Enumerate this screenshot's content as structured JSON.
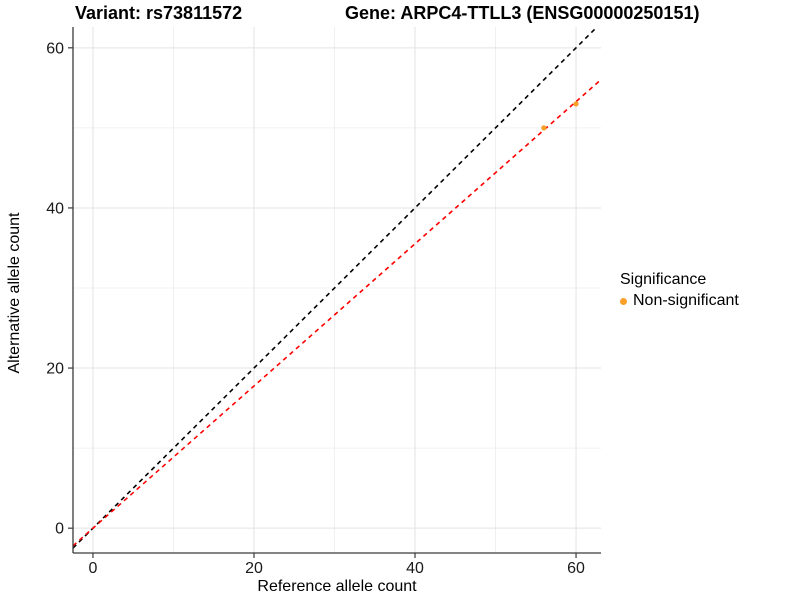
{
  "title": {
    "variant": "Variant: rs73811572",
    "gene": "Gene: ARPC4-TTLL3 (ENSG00000250151)"
  },
  "axes": {
    "x_label": "Reference allele count",
    "y_label": "Alternative allele count"
  },
  "legend": {
    "title": "Significance",
    "items": [
      {
        "label": "Non-significant",
        "color": "#F8A028"
      }
    ]
  },
  "chart_data": {
    "type": "scatter",
    "title": "Variant: rs73811572 | Gene: ARPC4-TTLL3 (ENSG00000250151)",
    "xlabel": "Reference allele count",
    "ylabel": "Alternative allele count",
    "xlim": [
      -2.48,
      63.1
    ],
    "ylim": [
      -3.1,
      62.6
    ],
    "x_ticks": [
      0,
      20,
      40,
      60
    ],
    "y_ticks": [
      0,
      20,
      40,
      60
    ],
    "x_minor_ticks": [
      10,
      30,
      50
    ],
    "y_minor_ticks": [
      10,
      30,
      50
    ],
    "grid": true,
    "legend_position": "right",
    "series": [
      {
        "name": "Non-significant",
        "color": "#F8A028",
        "points": [
          [
            56,
            50
          ],
          [
            60,
            53
          ]
        ]
      }
    ],
    "lines": [
      {
        "name": "identity-line",
        "slope": 1.0,
        "intercept": 0,
        "color": "#000000",
        "dashed": true
      },
      {
        "name": "fitted-line",
        "slope": 0.888,
        "intercept": 0,
        "color": "#FF0000",
        "dashed": true
      }
    ]
  },
  "style": {
    "grid_major_color": "#E3E3E3",
    "grid_minor_color": "#F0F0F0",
    "axis_color": "#3a3a3a",
    "tick_label_color": "#1a1a1a"
  }
}
